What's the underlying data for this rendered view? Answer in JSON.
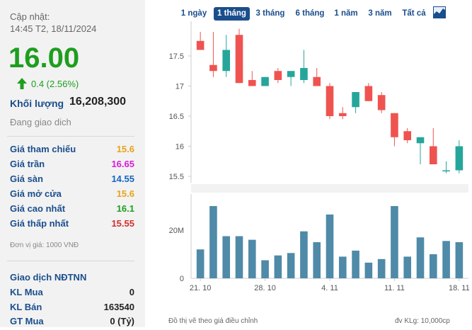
{
  "stock": {
    "update_label": "Cập nhật:",
    "update_time": "14:45 T2, 18/11/2024",
    "price": "16.00",
    "change": "0.4 (2.56%)",
    "volume_label": "Khối lượng",
    "volume": "16,208,300",
    "status": "Đang giao dich"
  },
  "prices": [
    {
      "label": "Giá tham chiếu",
      "value": "15.6",
      "color": "#e8a317"
    },
    {
      "label": "Giá trần",
      "value": "16.65",
      "color": "#d81bd8"
    },
    {
      "label": "Giá sàn",
      "value": "14.55",
      "color": "#1565c0"
    },
    {
      "label": "Giá mở cửa",
      "value": "15.6",
      "color": "#e8a317"
    },
    {
      "label": "Giá cao nhất",
      "value": "16.1",
      "color": "#1e9e1e"
    },
    {
      "label": "Giá thấp nhất",
      "value": "15.55",
      "color": "#d32f2f"
    }
  ],
  "unit_note": "Đơn vị giá: 1000 VNĐ",
  "foreign": {
    "title": "Giao dịch NĐTNN",
    "rows": [
      {
        "label": "KL Mua",
        "value": "0"
      },
      {
        "label": "KL Bán",
        "value": "163540"
      },
      {
        "label": "GT Mua",
        "value": "0 (Tỷ)"
      }
    ]
  },
  "tabs": [
    {
      "label": "1 ngày",
      "active": false
    },
    {
      "label": "1 tháng",
      "active": true
    },
    {
      "label": "3 tháng",
      "active": false
    },
    {
      "label": "6 tháng",
      "active": false
    },
    {
      "label": "1 năm",
      "active": false
    },
    {
      "label": "3 năm",
      "active": false
    },
    {
      "label": "Tất cả",
      "active": false
    }
  ],
  "footer": {
    "note": "Đồ thị vẽ theo giá điều chỉnh",
    "unit": "đv KLg: 10,000cp"
  },
  "colors": {
    "up": "#26a69a",
    "down": "#ef5350",
    "volume": "#4f8aa8",
    "accent": "#1a4e8c"
  },
  "chart_data": {
    "type": "candlestick",
    "price_ticks": [
      "17.5",
      "17",
      "16.5",
      "16",
      "15.5"
    ],
    "volume_ticks": [
      "20M",
      "0"
    ],
    "x_ticks": [
      {
        "label": "21. 10",
        "index": 0
      },
      {
        "label": "28. 10",
        "index": 5
      },
      {
        "label": "4. 11",
        "index": 10
      },
      {
        "label": "11. 11",
        "index": 15
      },
      {
        "label": "18. 11",
        "index": 20
      }
    ],
    "ohlc": [
      {
        "o": 17.75,
        "h": 17.9,
        "l": 17.6,
        "c": 17.6
      },
      {
        "o": 17.35,
        "h": 17.9,
        "l": 17.15,
        "c": 17.25
      },
      {
        "o": 17.25,
        "h": 17.85,
        "l": 17.15,
        "c": 17.6
      },
      {
        "o": 17.85,
        "h": 17.95,
        "l": 17.05,
        "c": 17.05
      },
      {
        "o": 17.1,
        "h": 17.25,
        "l": 17.0,
        "c": 17.0
      },
      {
        "o": 17.0,
        "h": 17.15,
        "l": 17.0,
        "c": 17.15
      },
      {
        "o": 17.25,
        "h": 17.3,
        "l": 17.05,
        "c": 17.1
      },
      {
        "o": 17.15,
        "h": 17.25,
        "l": 17.0,
        "c": 17.25
      },
      {
        "o": 17.1,
        "h": 17.6,
        "l": 17.05,
        "c": 17.3
      },
      {
        "o": 17.15,
        "h": 17.3,
        "l": 17.0,
        "c": 17.0
      },
      {
        "o": 17.0,
        "h": 17.05,
        "l": 16.45,
        "c": 16.5
      },
      {
        "o": 16.55,
        "h": 16.65,
        "l": 16.45,
        "c": 16.5
      },
      {
        "o": 16.65,
        "h": 16.9,
        "l": 16.55,
        "c": 16.9
      },
      {
        "o": 17.0,
        "h": 17.05,
        "l": 16.75,
        "c": 16.75
      },
      {
        "o": 16.85,
        "h": 16.9,
        "l": 16.55,
        "c": 16.6
      },
      {
        "o": 16.55,
        "h": 16.55,
        "l": 16.0,
        "c": 16.15
      },
      {
        "o": 16.25,
        "h": 16.3,
        "l": 16.05,
        "c": 16.1
      },
      {
        "o": 16.05,
        "h": 16.15,
        "l": 15.7,
        "c": 16.15
      },
      {
        "o": 16.0,
        "h": 16.3,
        "l": 15.7,
        "c": 15.7
      },
      {
        "o": 15.6,
        "h": 15.75,
        "l": 15.55,
        "c": 15.6
      },
      {
        "o": 15.6,
        "h": 16.1,
        "l": 15.55,
        "c": 16.0
      }
    ],
    "volume": [
      12,
      30,
      17.5,
      17.5,
      16,
      7.5,
      9.5,
      10.5,
      19.5,
      15,
      26.5,
      9,
      11.5,
      6.5,
      8,
      30,
      9,
      17,
      10,
      15.5,
      15
    ]
  }
}
